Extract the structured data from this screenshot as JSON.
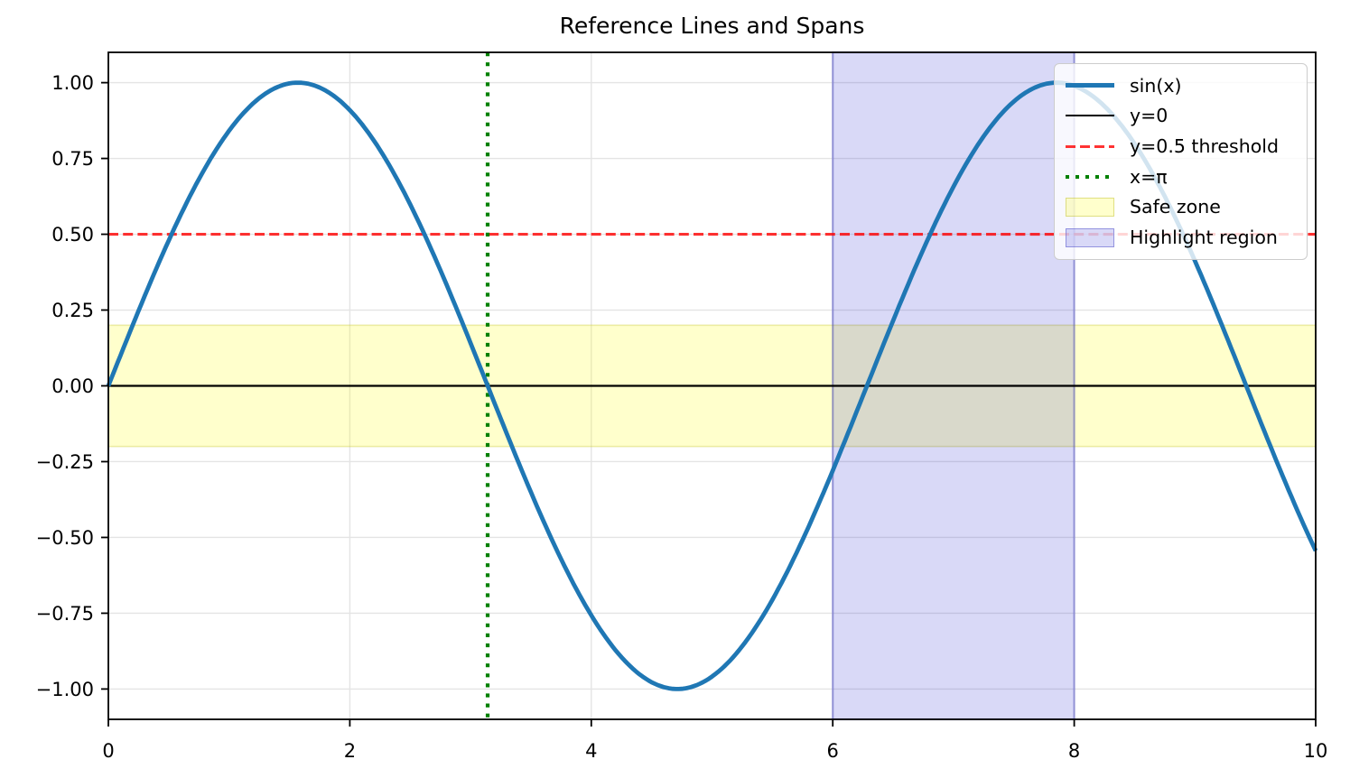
{
  "figure": {
    "title": "Reference Lines and Spans",
    "background": "#ffffff"
  },
  "axes": {
    "xlim": [
      0,
      10
    ],
    "ylim": [
      -1.1,
      1.1
    ],
    "x_ticks": {
      "values": [
        0,
        2,
        4,
        6,
        8,
        10
      ],
      "labels": [
        "0",
        "2",
        "4",
        "6",
        "8",
        "10"
      ]
    },
    "y_ticks": {
      "values": [
        -1.0,
        -0.75,
        -0.5,
        -0.25,
        0.0,
        0.25,
        0.5,
        0.75,
        1.0
      ],
      "labels": [
        "−1.00",
        "−0.75",
        "−0.50",
        "−0.25",
        "0.00",
        "0.25",
        "0.50",
        "0.75",
        "1.00"
      ]
    },
    "grid": true,
    "grid_color": "#e4e4e4",
    "spine_color": "#000000"
  },
  "chart_data": {
    "type": "line",
    "title": "Reference Lines and Spans",
    "xlabel": "",
    "ylabel": "",
    "xlim": [
      0,
      10
    ],
    "ylim": [
      -1.1,
      1.1
    ],
    "grid": true,
    "legend_position": "upper right",
    "series": [
      {
        "id": "sin-curve",
        "name": "sin(x)",
        "fn": "sin",
        "x_min": 0,
        "x_max": 10,
        "color": "#1f77b4",
        "linewidth": 4.8,
        "sample_x": [
          0,
          0.5,
          1,
          1.5,
          2,
          2.5,
          3,
          3.5,
          4,
          4.5,
          5,
          5.5,
          6,
          6.5,
          7,
          7.5,
          8,
          8.5,
          9,
          9.5,
          10
        ],
        "sample_y": [
          0,
          0.479,
          0.841,
          0.997,
          0.909,
          0.599,
          0.141,
          -0.351,
          -0.757,
          -0.978,
          -0.959,
          -0.706,
          -0.279,
          0.215,
          0.657,
          0.938,
          0.989,
          0.798,
          0.412,
          -0.075,
          -0.544
        ]
      }
    ],
    "reference_lines": [
      {
        "id": "y0-line",
        "name": "y=0",
        "type": "hline",
        "y": 0,
        "color": "#000000",
        "style": "solid",
        "linewidth": 2.2
      },
      {
        "id": "threshold-line",
        "name": "y=0.5 threshold",
        "type": "hline",
        "y": 0.5,
        "color": "rgba(255,0,0,0.8)",
        "style": "dashed",
        "linewidth": 3.1
      },
      {
        "id": "pi-line",
        "name": "x=π",
        "type": "vline",
        "x": 3.14159,
        "color": "#008000",
        "style": "dotted",
        "linewidth": 4.2
      }
    ],
    "spans": [
      {
        "id": "safe-zone-span",
        "name": "Safe zone",
        "type": "hspan",
        "y_min": -0.2,
        "y_max": 0.2,
        "fill": "rgba(255,255,0,0.2)",
        "edge": "rgba(200,200,50,0.35)",
        "edge_width": 1.6
      },
      {
        "id": "highlight-span",
        "name": "Highlight region",
        "type": "vspan",
        "x_min": 6,
        "x_max": 8,
        "fill": "rgba(0,0,200,0.15)",
        "edge": "rgba(55,55,190,0.4)",
        "edge_width": 2.2
      }
    ]
  },
  "legend": {
    "entries": [
      {
        "label": "sin(x)",
        "swatch": "line-solid-thick",
        "color": "#1f77b4"
      },
      {
        "label": "y=0",
        "swatch": "line-solid-thin",
        "color": "#000000"
      },
      {
        "label": "y=0.5 threshold",
        "swatch": "line-dashed",
        "color": "rgba(255,0,0,0.8)"
      },
      {
        "label": "x=π",
        "swatch": "line-dotted",
        "color": "#008000"
      },
      {
        "label": "Safe zone",
        "swatch": "patch",
        "fill": "rgba(255,255,0,0.2)",
        "edge": "rgba(185,185,40,0.45)"
      },
      {
        "label": "Highlight region",
        "swatch": "patch",
        "fill": "rgba(0,0,200,0.15)",
        "edge": "rgba(80,80,200,0.5)"
      }
    ]
  }
}
